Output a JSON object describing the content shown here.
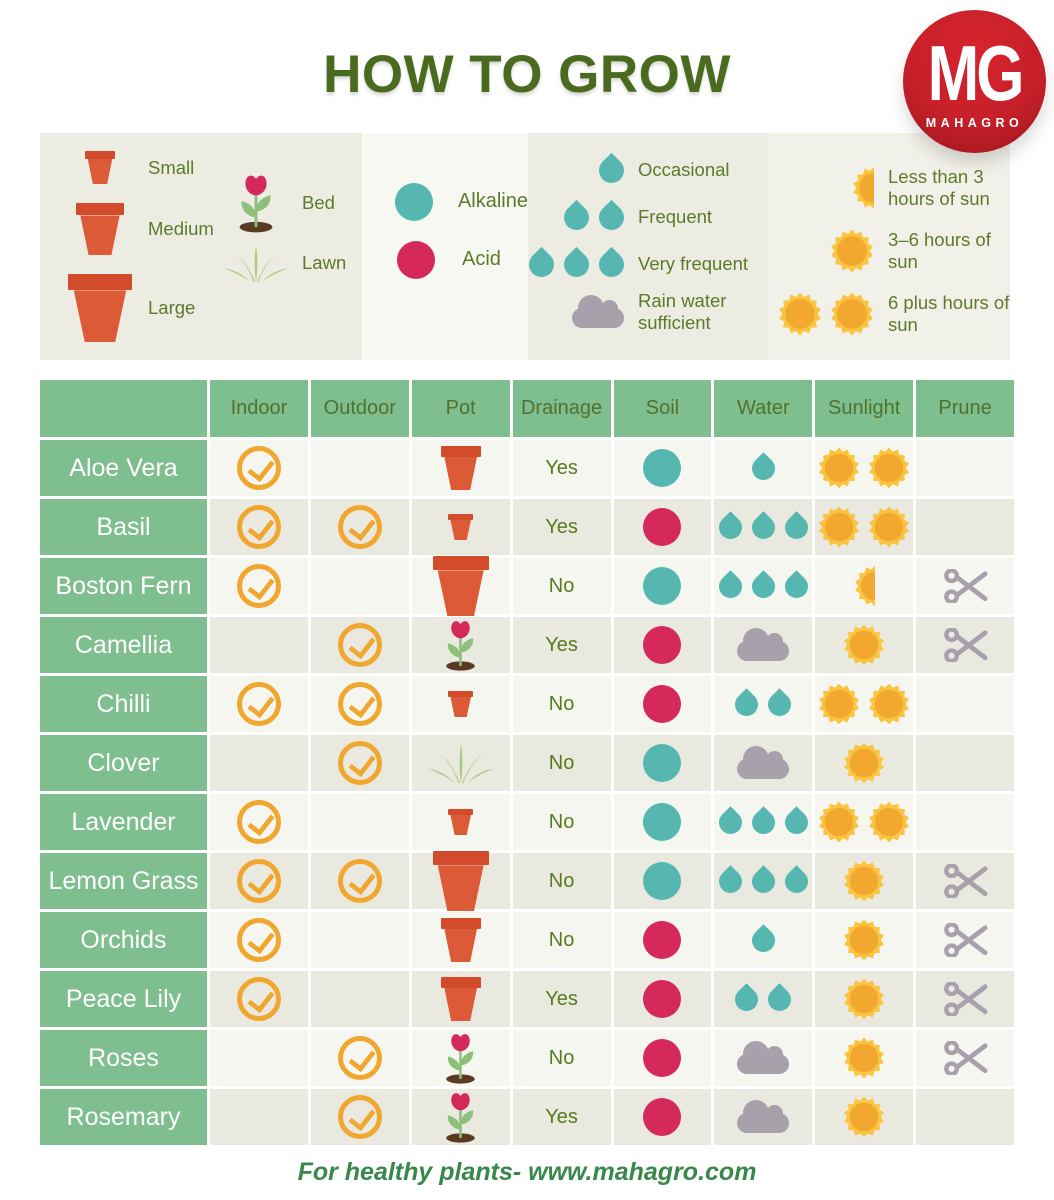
{
  "chart_data": {
    "type": "table",
    "title": "HOW TO GROW",
    "columns": [
      "Indoor",
      "Outdoor",
      "Pot",
      "Drainage",
      "Soil",
      "Water",
      "Sunlight",
      "Prune"
    ],
    "rows": [
      {
        "plant": "Aloe Vera",
        "indoor": true,
        "outdoor": false,
        "pot": "medium pot",
        "drainage": "Yes",
        "soil": "alkaline",
        "water": "occasional",
        "sunlight": "6 plus hours",
        "prune": false
      },
      {
        "plant": "Basil",
        "indoor": true,
        "outdoor": true,
        "pot": "small pot",
        "drainage": "Yes",
        "soil": "acid",
        "water": "very frequent",
        "sunlight": "6 plus hours",
        "prune": false
      },
      {
        "plant": "Boston Fern",
        "indoor": true,
        "outdoor": false,
        "pot": "large pot",
        "drainage": "No",
        "soil": "alkaline",
        "water": "very frequent",
        "sunlight": "less than 3 hours",
        "prune": true
      },
      {
        "plant": "Camellia",
        "indoor": false,
        "outdoor": true,
        "pot": "bed",
        "drainage": "Yes",
        "soil": "acid",
        "water": "rain water sufficient",
        "sunlight": "3-6 hours",
        "prune": true
      },
      {
        "plant": "Chilli",
        "indoor": true,
        "outdoor": true,
        "pot": "small pot",
        "drainage": "No",
        "soil": "acid",
        "water": "frequent",
        "sunlight": "6 plus hours",
        "prune": false
      },
      {
        "plant": "Clover",
        "indoor": false,
        "outdoor": true,
        "pot": "lawn",
        "drainage": "No",
        "soil": "alkaline",
        "water": "rain water sufficient",
        "sunlight": "3-6 hours",
        "prune": false
      },
      {
        "plant": "Lavender",
        "indoor": true,
        "outdoor": false,
        "pot": "small pot",
        "drainage": "No",
        "soil": "alkaline",
        "water": "very frequent",
        "sunlight": "6 plus hours",
        "prune": false
      },
      {
        "plant": "Lemon Grass",
        "indoor": true,
        "outdoor": true,
        "pot": "large pot",
        "drainage": "No",
        "soil": "alkaline",
        "water": "very frequent",
        "sunlight": "3-6 hours",
        "prune": true
      },
      {
        "plant": "Orchids",
        "indoor": true,
        "outdoor": false,
        "pot": "medium pot",
        "drainage": "No",
        "soil": "acid",
        "water": "occasional",
        "sunlight": "3-6 hours",
        "prune": true
      },
      {
        "plant": "Peace Lily",
        "indoor": true,
        "outdoor": false,
        "pot": "medium pot",
        "drainage": "Yes",
        "soil": "acid",
        "water": "frequent",
        "sunlight": "3-6 hours",
        "prune": true
      },
      {
        "plant": "Roses",
        "indoor": false,
        "outdoor": true,
        "pot": "bed",
        "drainage": "No",
        "soil": "acid",
        "water": "rain water sufficient",
        "sunlight": "3-6 hours",
        "prune": true
      },
      {
        "plant": "Rosemary",
        "indoor": false,
        "outdoor": true,
        "pot": "bed",
        "drainage": "Yes",
        "soil": "acid",
        "water": "rain water sufficient",
        "sunlight": "3-6 hours",
        "prune": false
      }
    ]
  },
  "logo": {
    "monogram": "MG",
    "brand": "MAHAGRO"
  },
  "footer": "For healthy plants- www.mahagro.com",
  "legend": {
    "pot_sizes": [
      {
        "label": "Small",
        "size": "small"
      },
      {
        "label": "Medium",
        "size": "medium"
      },
      {
        "label": "Large",
        "size": "large"
      }
    ],
    "planting": [
      {
        "label": "Bed",
        "type": "bed"
      },
      {
        "label": "Lawn",
        "type": "lawn"
      }
    ],
    "soil": [
      {
        "label": "Alkaline",
        "type": "alkaline"
      },
      {
        "label": "Acid",
        "type": "acid"
      }
    ],
    "water": [
      {
        "label": "Occasional",
        "level": "occasional"
      },
      {
        "label": "Frequent",
        "level": "frequent"
      },
      {
        "label": "Very frequent",
        "level": "very frequent"
      },
      {
        "label": "Rain water sufficient",
        "level": "rain water sufficient"
      }
    ],
    "sunlight": [
      {
        "label": "Less than 3 hours of sun",
        "level": "less than 3 hours"
      },
      {
        "label": "3–6 hours of sun",
        "level": "3-6 hours"
      },
      {
        "label": "6 plus hours of sun",
        "level": "6 plus hours"
      }
    ]
  },
  "colors": {
    "title_green": "#4a6b1f",
    "header_text": "#50722c",
    "legend_text": "#5d7a2a",
    "yes_no_text": "#5a7a1e",
    "cell_green": "#7fbe8e",
    "row_light": "#f6f6f0",
    "row_dark": "#e9e9df",
    "panel_beige": "#edece2",
    "panel_light": "#f8f8f3",
    "panel_sun": "#f2f1e9",
    "teal": "#56b7b1",
    "crimson": "#d5295b",
    "pot_orange": "#dc5a36",
    "pot_rim": "#d24c2c",
    "check_orange": "#f0a72f",
    "sun_outer": "#fbc440",
    "sun_inner": "#f2a72e",
    "grey": "#a8a0ab",
    "logo_red": "#c6202a",
    "footer_green": "#38874b",
    "leaf_green": "#8cc07a",
    "grass_light": "#bdd69b",
    "grass_mid": "#a9ca84",
    "soil_brown": "#5a3a20"
  }
}
